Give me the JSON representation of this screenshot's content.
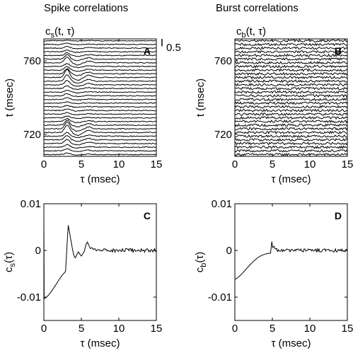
{
  "figure": {
    "left_title": "Spike correlations",
    "right_title": "Burst correlations"
  },
  "colors": {
    "ink": "#000000",
    "panel_label_bg": "#ffffff"
  },
  "chart_data": [
    {
      "panel": "A",
      "type": "line",
      "ylabel_prefix": "c",
      "ylabel_sub": "s",
      "ylabel_suffix": "(t, τ)",
      "axis_label": "t (msec)",
      "xlabel": "τ (msec)",
      "xlim": [
        0,
        15
      ],
      "ylim": [
        708,
        772
      ],
      "x_ticks": [
        0,
        5,
        10,
        15
      ],
      "y_ticks": [
        720,
        760
      ],
      "scale_bar": {
        "label": "0.5",
        "value": 0.5
      },
      "trace_t": [
        709,
        711,
        713,
        715,
        717,
        719,
        721,
        723,
        725,
        727,
        729,
        731,
        733,
        735,
        737,
        739,
        741,
        743,
        745,
        747,
        749,
        751,
        753,
        755,
        757,
        759,
        761,
        763,
        765,
        767,
        769,
        771
      ],
      "bump_height": [
        0.1,
        0.15,
        0.18,
        0.28,
        0.3,
        0.25,
        0.52,
        0.45,
        0.32,
        0.2,
        0.12,
        0.1,
        0.1,
        0.08,
        0.1,
        0.12,
        0.14,
        0.12,
        0.18,
        0.3,
        0.45,
        0.55,
        0.35,
        0.25,
        0.2,
        0.4,
        0.3,
        0.18,
        0.12,
        0.1,
        0.08,
        0.05
      ],
      "noise_amplitude": 0.03
    },
    {
      "panel": "B",
      "type": "line",
      "ylabel_prefix": "c",
      "ylabel_sub": "b",
      "ylabel_suffix": "(t, τ)",
      "axis_label": "t (msec)",
      "xlabel": "τ (msec)",
      "xlim": [
        0,
        15
      ],
      "ylim": [
        708,
        772
      ],
      "x_ticks": [
        0,
        5,
        10,
        15
      ],
      "y_ticks": [
        720,
        760
      ],
      "trace_t": [
        709,
        711,
        713,
        715,
        717,
        719,
        721,
        723,
        725,
        727,
        729,
        731,
        733,
        735,
        737,
        739,
        741,
        743,
        745,
        747,
        749,
        751,
        753,
        755,
        757,
        759,
        761,
        763,
        765,
        767,
        769,
        771
      ],
      "bump_height": [
        0,
        0,
        0,
        0,
        0,
        0,
        0,
        0,
        0,
        0,
        0,
        0,
        0,
        0,
        0,
        0,
        0,
        0,
        0,
        0,
        0,
        0,
        0,
        0,
        0,
        0,
        0,
        0,
        0,
        0,
        0,
        0
      ],
      "noise_amplitude": 0.08
    },
    {
      "panel": "C",
      "type": "line",
      "ylabel_prefix": "c",
      "ylabel_sub": "s",
      "ylabel_suffix": "(τ)",
      "xlabel": "τ (msec)",
      "xlim": [
        0,
        15
      ],
      "ylim": [
        -0.015,
        0.01
      ],
      "x_ticks": [
        0,
        5,
        10,
        15
      ],
      "y_ticks": [
        0.01,
        0,
        -0.01
      ],
      "y_tick_labels": [
        "0.01",
        "0",
        "-0.01"
      ],
      "x": [
        0,
        0.02,
        0.04,
        0.3,
        0.6,
        1.0,
        1.5,
        2.0,
        2.5,
        2.9,
        3.1,
        3.25,
        3.4,
        3.6,
        3.8,
        4.0,
        4.2,
        4.4,
        4.6,
        4.8,
        5.0,
        5.2,
        5.4,
        5.6,
        5.8,
        6.0,
        6.2,
        6.4,
        6.6,
        6.8,
        7.0,
        7.2,
        7.5
      ],
      "y": [
        0.0065,
        -0.0004,
        -0.0103,
        -0.0101,
        -0.0096,
        -0.0088,
        -0.0076,
        -0.0063,
        -0.0052,
        -0.0045,
        0.0015,
        0.0054,
        0.0041,
        0.0022,
        0.0004,
        -0.0011,
        -0.0016,
        -0.0009,
        -0.0003,
        -0.0008,
        -0.0012,
        -0.0007,
        -0.0002,
        0.0012,
        0.0018,
        0.0011,
        0.0004,
        0.0006,
        0.0002,
        0.0004,
        -0.0001,
        0.0002,
        0.0
      ],
      "noise_from": 7.5,
      "noise_amplitude": 0.0004
    },
    {
      "panel": "D",
      "type": "line",
      "ylabel_prefix": "c",
      "ylabel_sub": "b",
      "ylabel_suffix": "(τ)",
      "xlabel": "τ (msec)",
      "xlim": [
        0,
        15
      ],
      "ylim": [
        -0.015,
        0.01
      ],
      "x_ticks": [
        0,
        5,
        10,
        15
      ],
      "y_ticks": [
        0.01,
        0,
        -0.01
      ],
      "y_tick_labels": [
        "0.01",
        "0",
        "-0.01"
      ],
      "x": [
        0,
        0.15,
        0.5,
        1.0,
        1.5,
        2.0,
        2.5,
        3.0,
        3.5,
        4.0,
        4.5,
        4.75,
        4.82,
        4.92,
        5.05,
        5.2,
        5.4,
        5.6
      ],
      "y": [
        -0.0061,
        -0.0061,
        -0.0057,
        -0.0049,
        -0.004,
        -0.0031,
        -0.0023,
        -0.0016,
        -0.0011,
        -0.0008,
        -0.0006,
        -0.0006,
        0.0003,
        0.0019,
        0.0006,
        0.0009,
        0.0003,
        0.0004
      ],
      "noise_from": 5.6,
      "noise_amplitude": 0.00035
    }
  ]
}
